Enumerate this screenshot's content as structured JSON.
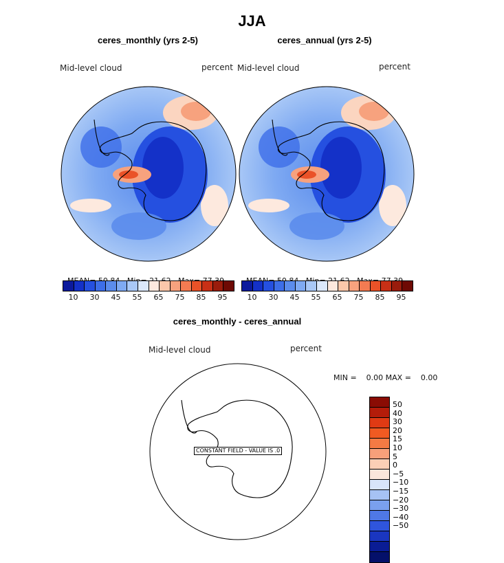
{
  "title": "JJA",
  "panels": [
    {
      "header": "ceres_monthly (yrs 2-5)",
      "var_label": "Mid-level cloud",
      "units": "percent",
      "stats": {
        "mean_label": "MEAN=",
        "mean": "50.84",
        "min_label": "Min=",
        "min": "21.62",
        "max_label": "Max=",
        "max": "77.39"
      },
      "colorbar_ticks": [
        "10",
        "30",
        "45",
        "55",
        "65",
        "75",
        "85",
        "95"
      ]
    },
    {
      "header": "ceres_annual (yrs 2-5)",
      "var_label": "Mid-level cloud",
      "units": "percent",
      "stats": {
        "mean_label": "MEAN=",
        "mean": "50.84",
        "min_label": "Min=",
        "min": "21.62",
        "max_label": "Max=",
        "max": "77.39"
      },
      "colorbar_ticks": [
        "10",
        "30",
        "45",
        "55",
        "65",
        "75",
        "85",
        "95"
      ]
    }
  ],
  "diff": {
    "header": "ceres_monthly - ceres_annual",
    "var_label": "Mid-level cloud",
    "units": "percent",
    "minmax_text": "MIN =    0.00 MAX =    0.00",
    "constant_note": "CONSTANT FIELD - VALUE IS .0",
    "colorbar_ticks": [
      "50",
      "40",
      "30",
      "20",
      "15",
      "10",
      "5",
      "0",
      "−5",
      "−10",
      "−15",
      "−20",
      "−30",
      "−40",
      "−50"
    ]
  },
  "palette": {
    "main": [
      "#0c1a9c",
      "#1431c8",
      "#2550e0",
      "#3d6ee8",
      "#5b8cec",
      "#7faaf2",
      "#a9c8f6",
      "#dbe8fb",
      "#fde9de",
      "#fbc7aa",
      "#f7a27e",
      "#f37b52",
      "#ea5228",
      "#c83016",
      "#9a1c0c",
      "#6e0a04"
    ],
    "diff": [
      "#8a0c04",
      "#b41c0a",
      "#e03a14",
      "#f05a22",
      "#f47a44",
      "#f7a07a",
      "#fbcfb6",
      "#fbe6db",
      "#d8e4fa",
      "#a6c2f4",
      "#7aa0ee",
      "#4f78e6",
      "#2f55dc",
      "#1a36c0",
      "#0a1c94",
      "#04106a"
    ]
  }
}
